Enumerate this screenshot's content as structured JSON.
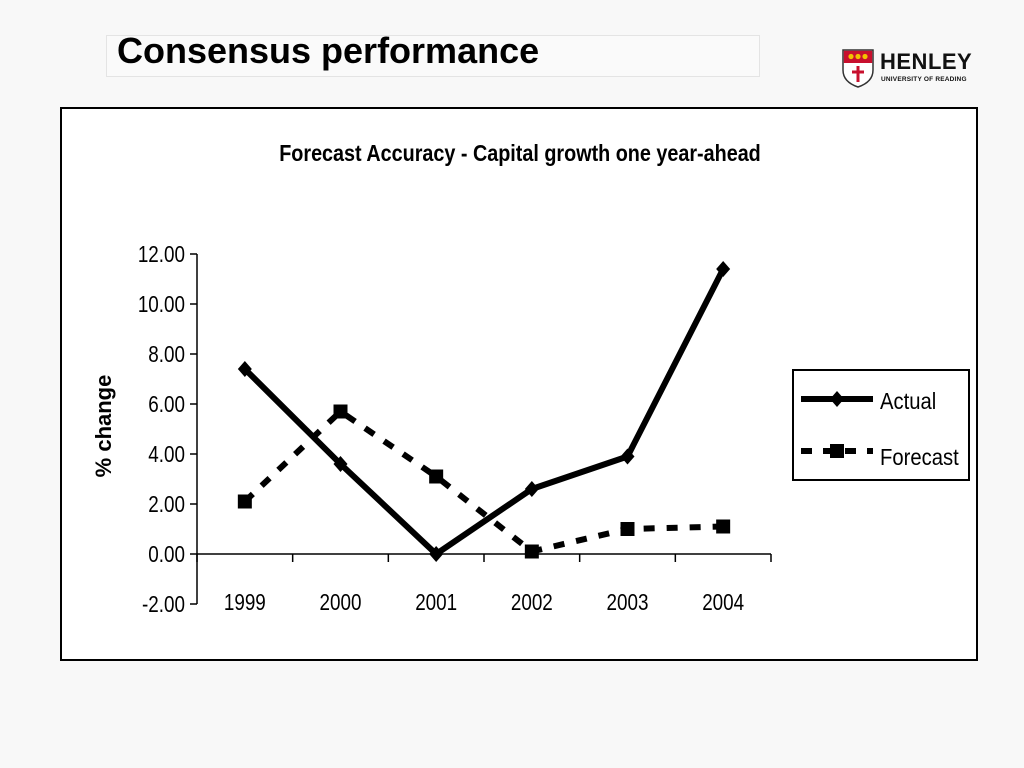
{
  "slide": {
    "title": "Consensus performance",
    "logo_name": "HENLEY",
    "logo_subtitle": "UNIVERSITY OF READING"
  },
  "colors": {
    "logo_red": "#c8102e",
    "logo_gold": "#f2c200",
    "line": "#000000"
  },
  "chart_data": {
    "type": "line",
    "title": "Forecast Accuracy - Capital growth one year-ahead",
    "xlabel": "",
    "ylabel": "% change",
    "categories": [
      "1999",
      "2000",
      "2001",
      "2002",
      "2003",
      "2004"
    ],
    "yticks": [
      "12.00",
      "10.00",
      "8.00",
      "6.00",
      "4.00",
      "2.00",
      "0.00",
      "-2.00"
    ],
    "ylim": [
      -2,
      12
    ],
    "grid": false,
    "legend_position": "right",
    "series": [
      {
        "name": "Actual",
        "values": [
          7.4,
          3.6,
          0.0,
          2.6,
          3.9,
          11.4
        ],
        "marker": "diamond",
        "style": "solid"
      },
      {
        "name": "Forecast",
        "values": [
          2.1,
          5.7,
          3.1,
          0.1,
          1.0,
          1.1
        ],
        "marker": "square",
        "style": "dashed"
      }
    ]
  }
}
